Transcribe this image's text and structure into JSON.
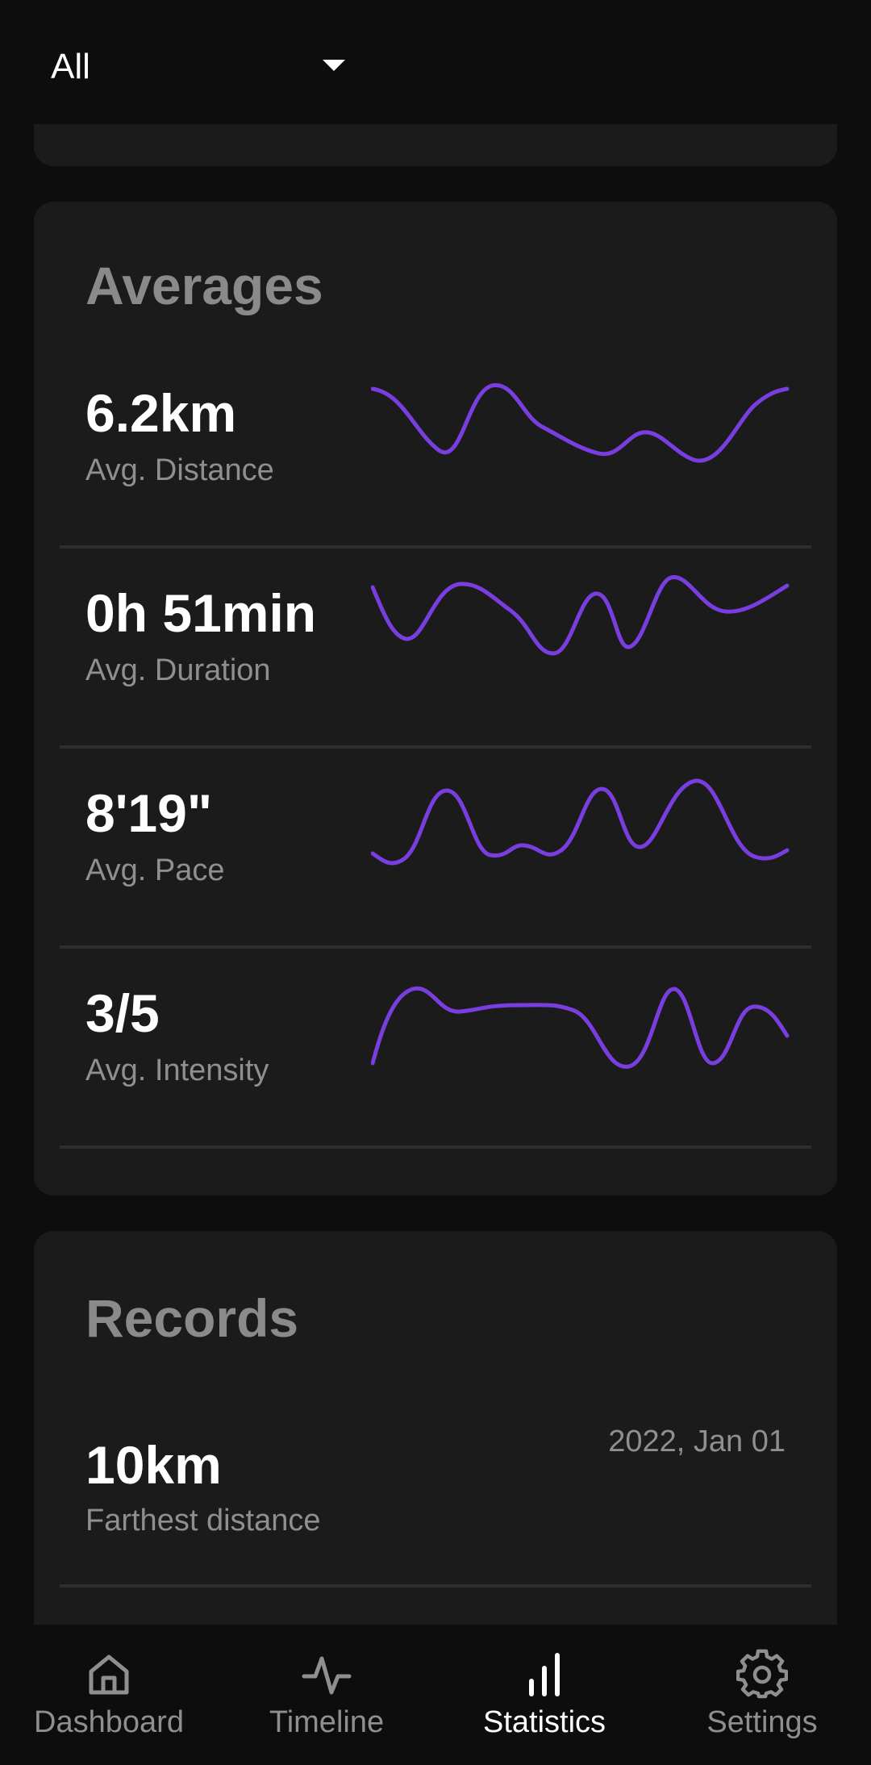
{
  "filter": {
    "selected": "All"
  },
  "averages": {
    "title": "Averages",
    "rows": [
      {
        "value": "6.2km",
        "label": "Avg. Distance"
      },
      {
        "value": "0h 51min",
        "label": "Avg. Duration"
      },
      {
        "value": "8'19\"",
        "label": "Avg. Pace"
      },
      {
        "value": "3/5",
        "label": "Avg. Intensity"
      }
    ]
  },
  "records": {
    "title": "Records",
    "rows": [
      {
        "value": "10km",
        "label": "Farthest distance",
        "date": "2022, Jan 01"
      }
    ]
  },
  "colors": {
    "accent": "#7a3ee0",
    "background": "#0d0d0d",
    "card": "#1b1b1c"
  },
  "nav": {
    "items": [
      {
        "label": "Dashboard",
        "icon": "home-icon",
        "active": false
      },
      {
        "label": "Timeline",
        "icon": "activity-icon",
        "active": false
      },
      {
        "label": "Statistics",
        "icon": "bar-chart-icon",
        "active": true
      },
      {
        "label": "Settings",
        "icon": "gear-icon",
        "active": false
      }
    ]
  }
}
